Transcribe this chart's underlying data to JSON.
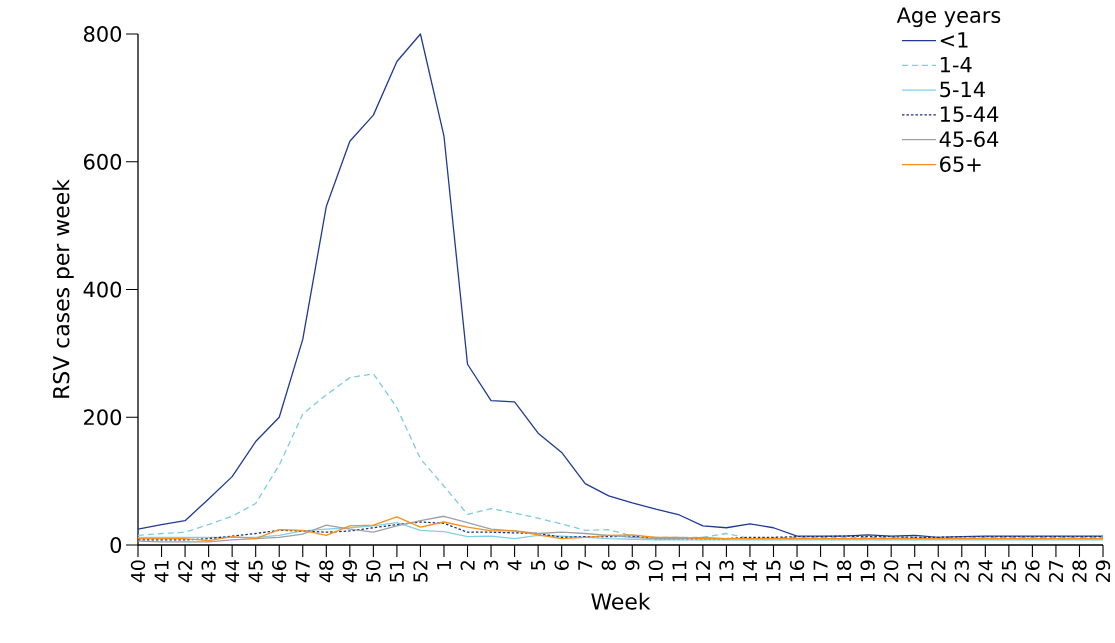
{
  "chart_data": {
    "type": "line",
    "xlabel": "Week",
    "ylabel": "RSV cases per week",
    "legend_title": "Age years",
    "legend": "top right",
    "grid": false,
    "marker": "none",
    "categories": [
      "40",
      "41",
      "42",
      "43",
      "44",
      "45",
      "46",
      "47",
      "48",
      "49",
      "50",
      "51",
      "52",
      "1",
      "2",
      "3",
      "4",
      "5",
      "6",
      "7",
      "8",
      "9",
      "10",
      "11",
      "12",
      "13",
      "14",
      "15",
      "16",
      "17",
      "18",
      "19",
      "20",
      "21",
      "22",
      "23",
      "24",
      "25",
      "26",
      "27",
      "28",
      "29"
    ],
    "ylim": [
      0,
      800
    ],
    "yticks": [
      0,
      200,
      400,
      600,
      800
    ],
    "series": [
      {
        "name": "<1",
        "color": "#1f3a93",
        "line_style": "solid",
        "values": [
          25,
          32,
          38,
          72,
          107,
          162,
          200,
          322,
          530,
          632,
          673,
          757,
          800,
          640,
          283,
          226,
          224,
          175,
          145,
          96,
          77,
          66,
          56,
          47,
          30,
          27,
          33,
          27,
          14,
          14,
          14,
          16,
          14,
          15,
          12,
          13,
          14,
          14,
          14,
          14,
          14,
          14
        ]
      },
      {
        "name": "1-4",
        "color": "#7ccbe0",
        "line_style": "dashed",
        "values": [
          15,
          18,
          20,
          32,
          45,
          65,
          125,
          205,
          235,
          262,
          268,
          215,
          135,
          92,
          48,
          57,
          50,
          42,
          33,
          23,
          24,
          14,
          12,
          12,
          12,
          18,
          10,
          11,
          12,
          12,
          12,
          12,
          12,
          12,
          12,
          12,
          12,
          12,
          12,
          12,
          12,
          12
        ]
      },
      {
        "name": "5-14",
        "color": "#7fd0ea",
        "line_style": "solid",
        "values": [
          12,
          12,
          12,
          12,
          12,
          12,
          15,
          22,
          25,
          27,
          30,
          35,
          23,
          21,
          13,
          14,
          10,
          15,
          14,
          12,
          10,
          9,
          8,
          8,
          8,
          8,
          8,
          8,
          8,
          8,
          8,
          8,
          8,
          8,
          8,
          8,
          8,
          8,
          8,
          8,
          8,
          8
        ]
      },
      {
        "name": "15-44",
        "color": "#1b2f80",
        "line_style": "dotted",
        "values": [
          8,
          8,
          8,
          10,
          14,
          18,
          23,
          22,
          20,
          22,
          27,
          32,
          36,
          34,
          20,
          20,
          19,
          18,
          12,
          13,
          13,
          14,
          10,
          10,
          10,
          10,
          12,
          12,
          13,
          13,
          14,
          13,
          13,
          12,
          12,
          13,
          13,
          13,
          13,
          13,
          13,
          13
        ]
      },
      {
        "name": "45-64",
        "color": "#a0a0a0",
        "line_style": "solid",
        "values": [
          6,
          5,
          5,
          5,
          8,
          10,
          12,
          17,
          31,
          25,
          20,
          30,
          38,
          45,
          35,
          25,
          22,
          18,
          20,
          18,
          15,
          12,
          10,
          10,
          12,
          10,
          10,
          10,
          10,
          10,
          10,
          10,
          10,
          10,
          10,
          10,
          10,
          10,
          10,
          10,
          10,
          10
        ]
      },
      {
        "name": "65+",
        "color": "#f5901e",
        "line_style": "solid",
        "values": [
          10,
          10,
          10,
          7,
          13,
          10,
          24,
          23,
          15,
          30,
          31,
          44,
          28,
          36,
          28,
          22,
          22,
          16,
          10,
          12,
          15,
          16,
          12,
          12,
          10,
          10,
          10,
          10,
          10,
          10,
          10,
          10,
          10,
          10,
          10,
          10,
          10,
          10,
          10,
          10,
          10,
          10
        ]
      }
    ]
  }
}
